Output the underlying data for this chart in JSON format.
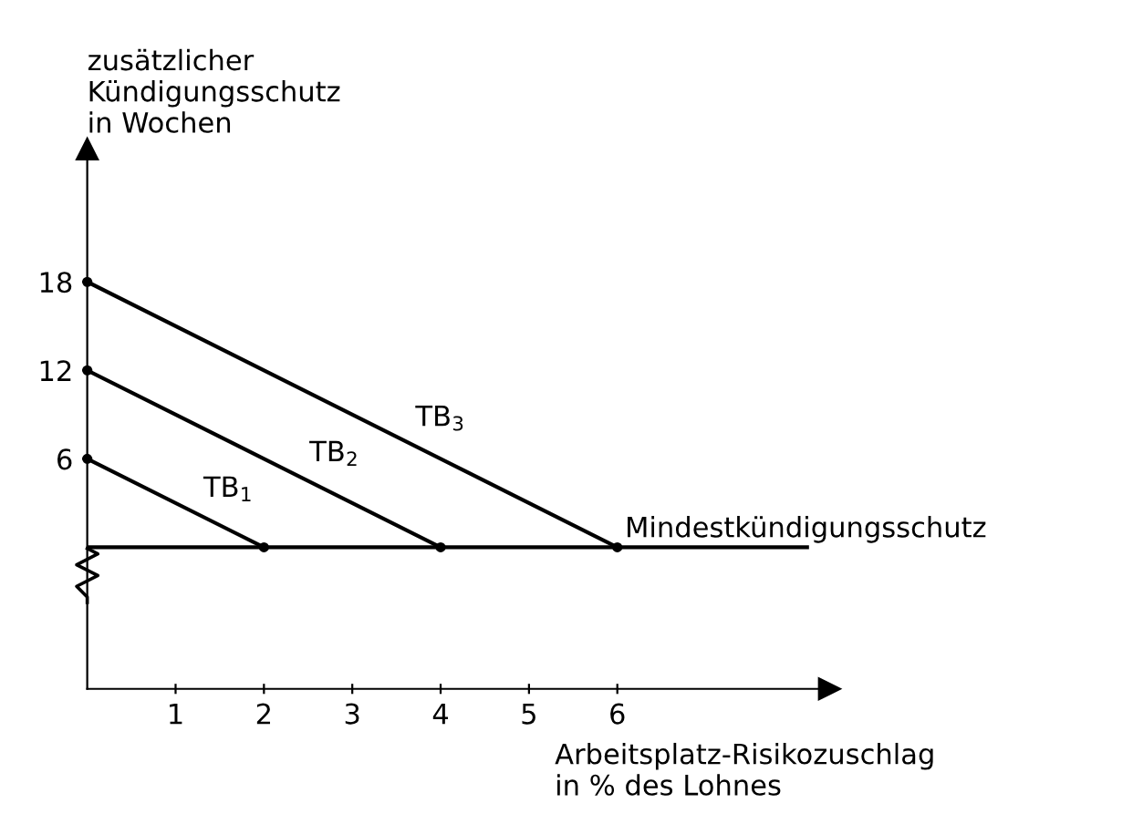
{
  "chart_data": {
    "type": "line",
    "xlabel": "Arbeitsplatz-Risikozuschlag\nin % des Lohnes",
    "ylabel": "zusätzlicher\nKündigungsschutz\nin Wochen",
    "series": [
      {
        "name": "TB$_{1}$",
        "color": "#000000",
        "x": [
          0,
          2
        ],
        "values": [
          6,
          0
        ]
      },
      {
        "name": "TB$_{2}$",
        "color": "#000000",
        "x": [
          0,
          4
        ],
        "values": [
          12,
          0
        ]
      },
      {
        "name": "TB$_{3}$",
        "color": "#000000",
        "x": [
          0,
          6
        ],
        "values": [
          18,
          0
        ]
      }
    ],
    "ref_lines": [
      {
        "axis": "y",
        "value": 0,
        "label": "Mindestkündigungsschutz",
        "color": "#000000"
      }
    ],
    "xlim": [
      0,
      8.4
    ],
    "ylim": [
      -9.6,
      27
    ],
    "xticks": [
      1,
      2,
      3,
      4,
      5,
      6
    ],
    "yticks": [
      6,
      12,
      18
    ],
    "marker": "circle",
    "line_style": "solid",
    "grid": false,
    "legend": false
  }
}
